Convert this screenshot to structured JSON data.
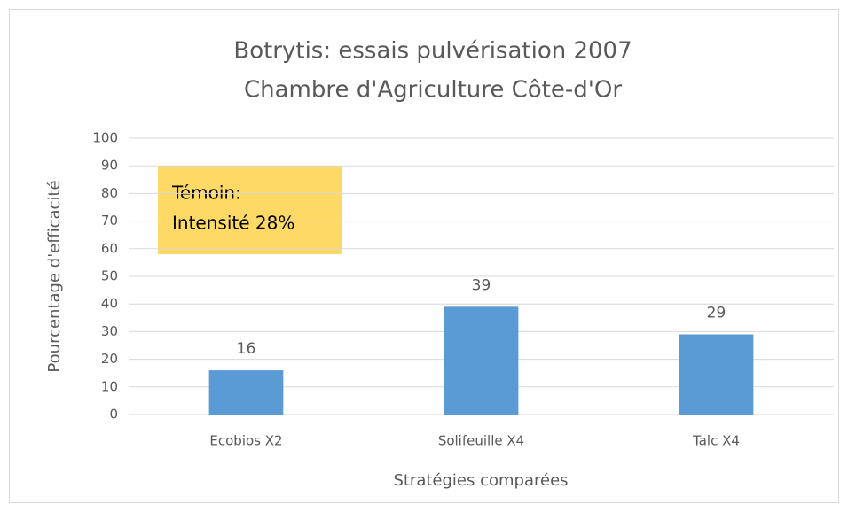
{
  "chart_data": {
    "type": "bar",
    "title": "Botrytis: essais pulvérisation 2007",
    "subtitle": "Chambre d'Agriculture Côte-d'Or",
    "x_label": "Stratégies comparées",
    "y_label": "Pourcentage d'efficacité",
    "annotation": [
      "Témoin:",
      "Intensité 28%"
    ],
    "categories": [
      "Ecobios X2",
      "Solifeuille X4",
      "Talc X4"
    ],
    "values": [
      16,
      39,
      29
    ],
    "color": "#5b9bd5",
    "ylim": [
      0,
      100
    ],
    "yticks": [
      0,
      10,
      20,
      30,
      40,
      50,
      60,
      70,
      80,
      90,
      100
    ],
    "grid": true
  }
}
